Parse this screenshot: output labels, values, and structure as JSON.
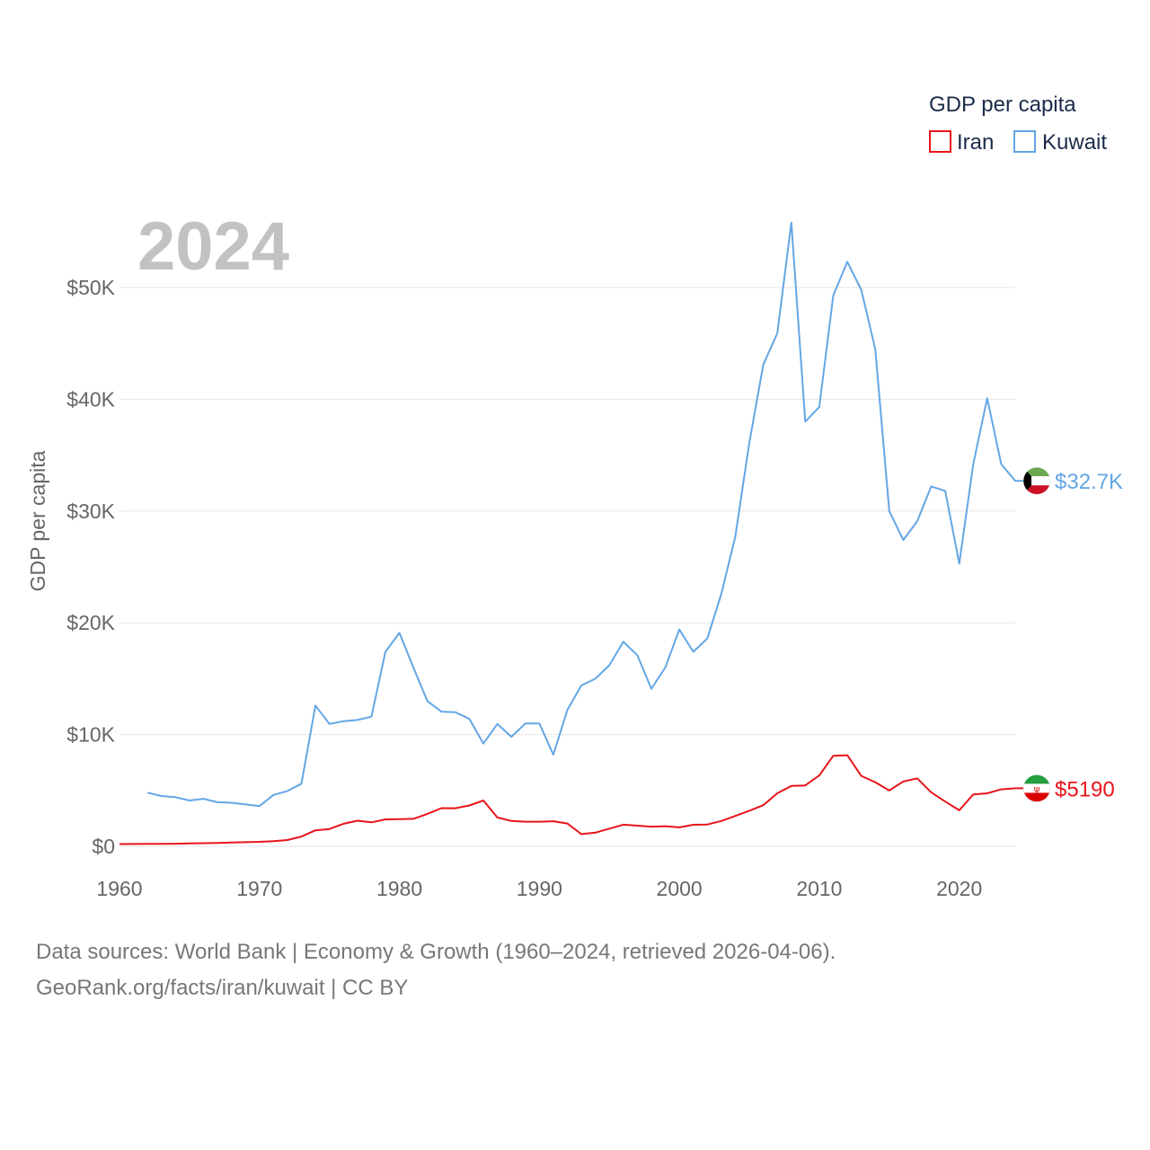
{
  "chart_data": {
    "type": "line",
    "title": "GDP per capita",
    "year_label": "2024",
    "ylabel": "GDP per capita",
    "xlim": [
      1960,
      2024
    ],
    "ylim": [
      0,
      55000
    ],
    "x_ticks": [
      1960,
      1970,
      1980,
      1990,
      2000,
      2010,
      2020
    ],
    "y_ticks": [
      {
        "value": 0,
        "label": "$0"
      },
      {
        "value": 10000,
        "label": "$10K"
      },
      {
        "value": 20000,
        "label": "$20K"
      },
      {
        "value": 30000,
        "label": "$30K"
      },
      {
        "value": 40000,
        "label": "$40K"
      },
      {
        "value": 50000,
        "label": "$50K"
      }
    ],
    "legend": {
      "title": "GDP per capita",
      "position": "top-right"
    },
    "series": [
      {
        "name": "Iran",
        "color": "#e8141a",
        "end_label": "$5190",
        "flag": "iran-flag",
        "x": [
          1960,
          1961,
          1962,
          1963,
          1964,
          1965,
          1966,
          1967,
          1968,
          1969,
          1970,
          1971,
          1972,
          1973,
          1974,
          1975,
          1976,
          1977,
          1978,
          1979,
          1980,
          1981,
          1982,
          1983,
          1984,
          1985,
          1986,
          1987,
          1988,
          1989,
          1990,
          1991,
          1992,
          1993,
          1994,
          1995,
          1996,
          1997,
          1998,
          1999,
          2000,
          2001,
          2002,
          2003,
          2004,
          2005,
          2006,
          2007,
          2008,
          2009,
          2010,
          2011,
          2012,
          2013,
          2014,
          2015,
          2016,
          2017,
          2018,
          2019,
          2020,
          2021,
          2022,
          2023,
          2024
        ],
        "values": [
          200,
          210,
          215,
          220,
          230,
          260,
          280,
          300,
          340,
          370,
          400,
          470,
          560,
          880,
          1430,
          1550,
          2020,
          2290,
          2150,
          2410,
          2430,
          2460,
          2900,
          3420,
          3410,
          3660,
          4100,
          2580,
          2270,
          2200,
          2200,
          2240,
          2040,
          1090,
          1220,
          1580,
          1940,
          1850,
          1760,
          1800,
          1700,
          1930,
          1950,
          2270,
          2720,
          3180,
          3680,
          4750,
          5400,
          5450,
          6340,
          8100,
          8150,
          6300,
          5740,
          4990,
          5800,
          6080,
          4830,
          4000,
          3220,
          4650,
          4740,
          5100,
          5190
        ]
      },
      {
        "name": "Kuwait",
        "color": "#64a6e4",
        "end_label": "$32.7K",
        "flag": "kuwait-flag",
        "x": [
          1962,
          1963,
          1964,
          1965,
          1966,
          1967,
          1968,
          1969,
          1970,
          1971,
          1972,
          1973,
          1974,
          1975,
          1976,
          1977,
          1978,
          1979,
          1980,
          1981,
          1982,
          1983,
          1984,
          1985,
          1986,
          1987,
          1988,
          1989,
          1990,
          1991,
          1992,
          1993,
          1994,
          1995,
          1996,
          1997,
          1998,
          1999,
          2000,
          2001,
          2002,
          2003,
          2004,
          2005,
          2006,
          2007,
          2008,
          2009,
          2010,
          2011,
          2012,
          2013,
          2014,
          2015,
          2016,
          2017,
          2018,
          2019,
          2020,
          2021,
          2022,
          2023,
          2024
        ],
        "values": [
          4800,
          4500,
          4400,
          4100,
          4250,
          3950,
          3900,
          3750,
          3600,
          4600,
          4950,
          5600,
          12600,
          10950,
          11200,
          11300,
          11600,
          17400,
          19100,
          16000,
          13000,
          12050,
          12000,
          11400,
          9200,
          10950,
          9800,
          11000,
          11000,
          8200,
          12200,
          14400,
          15000,
          16200,
          18300,
          17100,
          14100,
          16000,
          19400,
          17400,
          18600,
          22600,
          27700,
          36100,
          43100,
          45900,
          55800,
          38000,
          39300,
          49300,
          52300,
          49800,
          44500,
          30000,
          27400,
          29100,
          32200,
          31800,
          25300,
          34200,
          40100,
          34200,
          32700
        ]
      }
    ]
  },
  "footer": {
    "line1": "Data sources: World Bank | Economy & Growth (1960–2024, retrieved 2026-04-06).",
    "line2": "GeoRank.org/facts/iran/kuwait | CC BY"
  }
}
